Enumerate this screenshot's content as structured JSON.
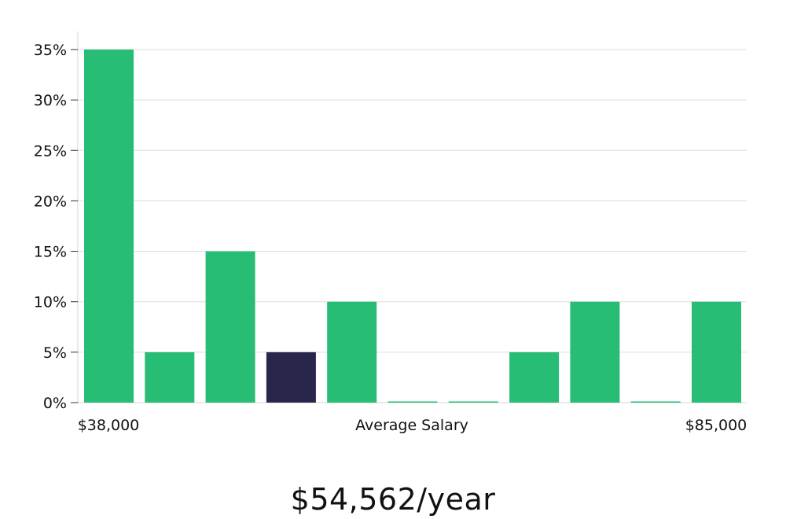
{
  "chart_data": {
    "type": "bar",
    "categories": [
      "$38,000",
      "",
      "",
      "",
      "",
      "",
      "",
      "",
      "",
      "",
      "$85,000"
    ],
    "values": [
      35,
      5,
      15,
      5,
      10,
      0,
      0,
      5,
      10,
      0,
      10
    ],
    "highlight_index": 3,
    "yticks": [
      "0%",
      "5%",
      "10%",
      "15%",
      "20%",
      "25%",
      "30%",
      "35%"
    ],
    "ylim": [
      0,
      35
    ],
    "xlabel": "Average Salary",
    "x_start_label": "$38,000",
    "x_end_label": "$85,000",
    "grid": true,
    "colors": {
      "bar": "#27bd75",
      "highlight": "#29264b",
      "grid": "#dddddd",
      "axis": "#d6d6d6"
    }
  },
  "salary": "$54,562/year"
}
